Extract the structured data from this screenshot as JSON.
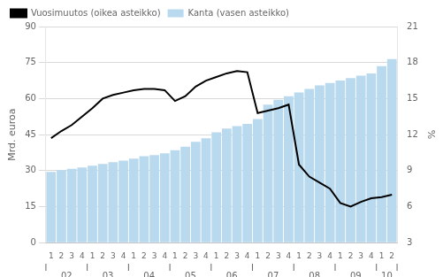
{
  "chart_data": {
    "type": "bar",
    "ylabel": "Mrd. euroa",
    "y2label": "%",
    "categories": [
      "1",
      "2",
      "3",
      "4",
      "1",
      "2",
      "3",
      "4",
      "1",
      "2",
      "3",
      "4",
      "1",
      "2",
      "3",
      "4",
      "1",
      "2",
      "3",
      "4",
      "1",
      "2",
      "3",
      "4",
      "1",
      "2",
      "3",
      "4",
      "1",
      "2",
      "3",
      "4",
      "1",
      "2"
    ],
    "category_groups": [
      {
        "label": "02",
        "size": 4
      },
      {
        "label": "03",
        "size": 4
      },
      {
        "label": "04",
        "size": 4
      },
      {
        "label": "05",
        "size": 4
      },
      {
        "label": "06",
        "size": 4
      },
      {
        "label": "07",
        "size": 4
      },
      {
        "label": "08",
        "size": 4
      },
      {
        "label": "09",
        "size": 4
      },
      {
        "label": "10",
        "size": 2
      }
    ],
    "series": [
      {
        "name": "Kanta (vasen asteikko)",
        "type": "bar",
        "color": "#b8d9ee",
        "values": [
          29.5,
          30.2,
          30.8,
          31.3,
          32.0,
          32.8,
          33.5,
          34.2,
          35.0,
          36.0,
          36.5,
          37.2,
          38.5,
          40.0,
          42.0,
          43.5,
          46.0,
          47.5,
          48.5,
          49.5,
          51.5,
          57.5,
          59.5,
          61.0,
          62.5,
          64.0,
          65.5,
          66.5,
          67.5,
          68.5,
          69.5,
          70.5,
          73.5,
          76.5
        ]
      },
      {
        "name": "Vuosimuutos (oikea asteikko)",
        "type": "line",
        "color": "#000000",
        "axis": "y2",
        "values": [
          11.7,
          12.3,
          12.8,
          13.5,
          14.2,
          15.0,
          15.3,
          15.5,
          15.7,
          15.8,
          15.8,
          15.7,
          14.8,
          15.2,
          16.0,
          16.5,
          16.8,
          17.1,
          17.3,
          17.2,
          13.8,
          14.0,
          14.2,
          14.5,
          9.5,
          8.5,
          8.0,
          7.5,
          6.3,
          6.0,
          6.4,
          6.7,
          6.8,
          7.0
        ]
      }
    ],
    "ylim": [
      0,
      90
    ],
    "yticks": [
      0,
      15,
      30,
      45,
      60,
      75,
      90
    ],
    "y2lim": [
      3,
      21
    ],
    "y2ticks": [
      3,
      6,
      9,
      12,
      15,
      18,
      21
    ],
    "grid": true,
    "legend": "upper left"
  }
}
